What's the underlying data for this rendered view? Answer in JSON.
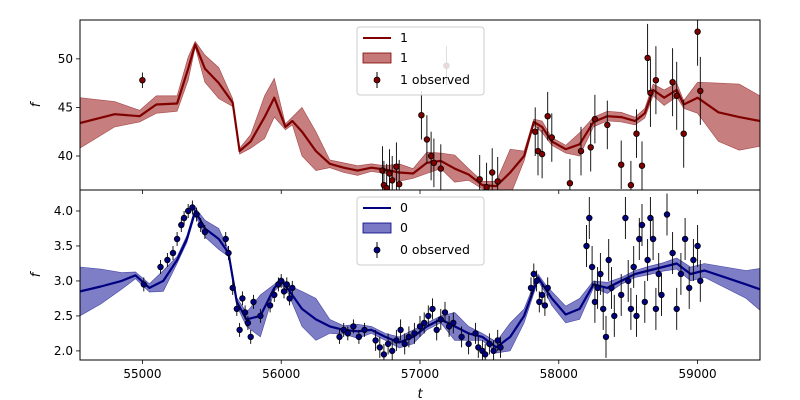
{
  "chart_data": [
    {
      "type": "line",
      "panel": "top",
      "xlabel": "",
      "ylabel": "f",
      "xlim": [
        54550,
        59450
      ],
      "ylim": [
        36.5,
        54
      ],
      "yticks": [
        40,
        45,
        50
      ],
      "xticks": [
        55000,
        56000,
        57000,
        58000,
        59000
      ],
      "colors": {
        "line": "#800000",
        "band": "#b24c4c",
        "points": "#800000"
      },
      "legend": {
        "placement": "top-center",
        "entries": [
          "1",
          "1",
          "1 observed"
        ]
      },
      "series": [
        {
          "name": "1",
          "kind": "model-line",
          "x": [
            54550,
            54800,
            54980,
            55100,
            55250,
            55330,
            55380,
            55450,
            55550,
            55650,
            55700,
            55780,
            55880,
            55950,
            56030,
            56080,
            56150,
            56250,
            56350,
            56450,
            56550,
            56650,
            56750,
            56850,
            56950,
            57050,
            57150,
            57250,
            57350,
            57450,
            57550,
            57650,
            57750,
            57820,
            57880,
            57950,
            58050,
            58150,
            58250,
            58350,
            58450,
            58550,
            58620,
            58680,
            58760,
            58850,
            58900,
            59000,
            59150,
            59300,
            59450
          ],
          "y": [
            43.4,
            44.3,
            44.1,
            45.3,
            45.4,
            49.0,
            51.5,
            49.0,
            47.5,
            45.5,
            40.5,
            41.5,
            44.0,
            46.0,
            43.0,
            43.6,
            42.5,
            40.5,
            39.2,
            38.8,
            38.5,
            38.8,
            38.6,
            38.3,
            38.2,
            39.3,
            39.5,
            38.7,
            38.1,
            37.0,
            36.9,
            38.3,
            40.0,
            43.5,
            43.0,
            41.5,
            40.7,
            41.2,
            43.5,
            44.1,
            44.0,
            43.6,
            44.4,
            46.8,
            46.0,
            46.8,
            45.3,
            46.0,
            44.5,
            44.0,
            43.6
          ]
        },
        {
          "name": "1",
          "kind": "uncertainty-band",
          "x": [
            54550,
            54800,
            54980,
            55100,
            55250,
            55330,
            55380,
            55450,
            55550,
            55650,
            55700,
            55780,
            55880,
            55950,
            56030,
            56080,
            56150,
            56250,
            56350,
            56450,
            56550,
            56650,
            56750,
            56850,
            56950,
            57050,
            57150,
            57250,
            57350,
            57450,
            57550,
            57650,
            57750,
            57820,
            57880,
            57950,
            58050,
            58150,
            58250,
            58350,
            58450,
            58550,
            58620,
            58680,
            58760,
            58850,
            58900,
            59000,
            59150,
            59300,
            59450
          ],
          "half_width": [
            2.6,
            1.3,
            0.6,
            0.9,
            0.8,
            1.2,
            0.3,
            1.4,
            1.6,
            0.4,
            0.3,
            0.7,
            2.2,
            2.0,
            0.3,
            0.4,
            2.5,
            2.0,
            0.4,
            0.5,
            0.5,
            0.4,
            0.4,
            0.9,
            0.5,
            1.1,
            0.8,
            1.4,
            0.6,
            0.4,
            0.5,
            2.4,
            0.5,
            0.3,
            0.6,
            0.4,
            0.4,
            1.2,
            0.5,
            0.5,
            0.5,
            0.4,
            0.5,
            0.6,
            0.8,
            0.7,
            0.4,
            1.6,
            3.0,
            3.4,
            2.6
          ]
        },
        {
          "name": "1 observed",
          "kind": "observed-points",
          "x": [
            55000,
            56730,
            56740,
            56760,
            56780,
            56800,
            56830,
            56850,
            57010,
            57050,
            57080,
            57100,
            57150,
            57190,
            57430,
            57480,
            57520,
            57560,
            57830,
            57850,
            57880,
            57920,
            57950,
            58080,
            58160,
            58230,
            58260,
            58350,
            58450,
            58520,
            58560,
            58600,
            58640,
            58660,
            58700,
            58820,
            58850,
            58900,
            59000,
            59020
          ],
          "y": [
            47.8,
            38.5,
            37.0,
            36.7,
            38.2,
            37.5,
            38.9,
            37.1,
            44.2,
            41.7,
            40.0,
            39.3,
            38.7,
            49.3,
            37.6,
            36.8,
            38.3,
            37.4,
            42.5,
            40.5,
            40.2,
            44.1,
            41.9,
            37.2,
            40.5,
            40.9,
            43.8,
            43.2,
            39.1,
            37.0,
            42.3,
            39.0,
            50.1,
            46.5,
            47.8,
            47.6,
            46.2,
            42.3,
            52.8,
            46.7
          ],
          "yerr": [
            0.8,
            2.5,
            2.5,
            2.5,
            2.5,
            2.5,
            2.5,
            2.5,
            2.5,
            2.5,
            2.5,
            2.5,
            2.5,
            2.0,
            2.5,
            2.5,
            2.5,
            2.5,
            2.5,
            2.5,
            2.5,
            2.5,
            2.5,
            2.5,
            2.5,
            2.5,
            2.5,
            2.5,
            2.5,
            2.5,
            2.5,
            2.5,
            3.5,
            3.5,
            3.5,
            3.5,
            3.5,
            3.5,
            3.5,
            3.5
          ]
        }
      ]
    },
    {
      "type": "line",
      "panel": "bottom",
      "xlabel": "t",
      "ylabel": "f",
      "xlim": [
        54550,
        59450
      ],
      "ylim": [
        1.87,
        4.3
      ],
      "yticks": [
        2.0,
        2.5,
        3.0,
        3.5,
        4.0
      ],
      "yticklabels": [
        "2.0",
        "2.5",
        "3.0",
        "3.5",
        "4.0"
      ],
      "xticks": [
        55000,
        56000,
        57000,
        58000,
        59000
      ],
      "colors": {
        "line": "#000080",
        "band": "#4c4cb2",
        "points": "#000080"
      },
      "legend": {
        "placement": "top-center",
        "entries": [
          "0",
          "0",
          "0 observed"
        ]
      },
      "series": [
        {
          "name": "0",
          "kind": "model-line",
          "x": [
            54550,
            54700,
            54850,
            54950,
            55050,
            55150,
            55250,
            55320,
            55380,
            55450,
            55550,
            55620,
            55680,
            55750,
            55850,
            55950,
            56000,
            56050,
            56150,
            56250,
            56350,
            56450,
            56550,
            56650,
            56750,
            56850,
            56950,
            57050,
            57150,
            57250,
            57350,
            57450,
            57550,
            57650,
            57750,
            57850,
            57900,
            57950,
            58050,
            58150,
            58250,
            58350,
            58450,
            58550,
            58650,
            58750,
            58850,
            58950,
            59050,
            59200,
            59350,
            59450
          ],
          "y": [
            2.85,
            2.92,
            3.0,
            3.08,
            2.9,
            3.0,
            3.3,
            3.6,
            4.0,
            3.75,
            3.6,
            3.4,
            2.7,
            2.45,
            2.5,
            2.9,
            3.0,
            2.88,
            2.6,
            2.45,
            2.35,
            2.3,
            2.28,
            2.3,
            2.2,
            2.12,
            2.2,
            2.35,
            2.45,
            2.35,
            2.25,
            2.2,
            2.05,
            2.2,
            2.5,
            3.05,
            2.9,
            2.75,
            2.52,
            2.6,
            2.95,
            2.9,
            3.0,
            3.1,
            3.15,
            3.2,
            3.25,
            3.1,
            3.15,
            3.05,
            2.95,
            2.88
          ]
        },
        {
          "name": "0",
          "kind": "uncertainty-band",
          "x": [
            54550,
            54700,
            54850,
            54950,
            55050,
            55150,
            55250,
            55320,
            55380,
            55450,
            55550,
            55620,
            55680,
            55750,
            55850,
            55950,
            56000,
            56050,
            56150,
            56250,
            56350,
            56450,
            56550,
            56650,
            56750,
            56850,
            56950,
            57050,
            57150,
            57250,
            57350,
            57450,
            57550,
            57650,
            57750,
            57850,
            57900,
            57950,
            58050,
            58150,
            58250,
            58350,
            58450,
            58550,
            58650,
            58750,
            58850,
            58950,
            59050,
            59200,
            59350,
            59450
          ],
          "half_width": [
            0.35,
            0.25,
            0.12,
            0.05,
            0.06,
            0.15,
            0.05,
            0.05,
            0.05,
            0.12,
            0.15,
            0.05,
            0.06,
            0.1,
            0.3,
            0.05,
            0.05,
            0.06,
            0.25,
            0.3,
            0.1,
            0.06,
            0.1,
            0.05,
            0.05,
            0.08,
            0.1,
            0.05,
            0.05,
            0.2,
            0.1,
            0.05,
            0.08,
            0.2,
            0.1,
            0.05,
            0.06,
            0.1,
            0.12,
            0.15,
            0.05,
            0.08,
            0.05,
            0.05,
            0.06,
            0.06,
            0.08,
            0.1,
            0.1,
            0.15,
            0.2,
            0.3
          ]
        },
        {
          "name": "0 observed",
          "kind": "observed-points",
          "x": [
            55010,
            55130,
            55180,
            55220,
            55250,
            55280,
            55300,
            55330,
            55360,
            55390,
            55420,
            55450,
            55600,
            55620,
            55650,
            55680,
            55700,
            55720,
            55740,
            55760,
            55780,
            55800,
            55850,
            55920,
            55950,
            55980,
            56000,
            56020,
            56040,
            56060,
            56080,
            56420,
            56450,
            56480,
            56520,
            56560,
            56600,
            56680,
            56710,
            56740,
            56770,
            56800,
            56830,
            56860,
            56890,
            56920,
            56960,
            57000,
            57030,
            57060,
            57090,
            57120,
            57150,
            57180,
            57210,
            57240,
            57300,
            57350,
            57400,
            57420,
            57450,
            57470,
            57500,
            57530,
            57560,
            57580,
            57800,
            57820,
            57840,
            57860,
            57880,
            57900,
            57920,
            58200,
            58220,
            58240,
            58260,
            58280,
            58300,
            58320,
            58340,
            58360,
            58380,
            58400,
            58450,
            58480,
            58500,
            58520,
            58540,
            58560,
            58580,
            58600,
            58620,
            58640,
            58660,
            58680,
            58700,
            58720,
            58740,
            58780,
            58820,
            58850,
            58880,
            58910,
            58940,
            58970,
            59000,
            59020
          ],
          "y": [
            2.95,
            3.2,
            3.3,
            3.4,
            3.6,
            3.8,
            3.9,
            4.0,
            4.05,
            3.95,
            3.8,
            3.7,
            3.6,
            3.4,
            2.9,
            2.6,
            2.3,
            2.75,
            2.55,
            2.4,
            2.2,
            2.7,
            2.5,
            2.65,
            2.8,
            2.95,
            3.0,
            2.85,
            2.95,
            2.75,
            2.9,
            2.2,
            2.3,
            2.25,
            2.35,
            2.2,
            2.3,
            2.15,
            2.05,
            1.95,
            2.1,
            2.0,
            2.15,
            2.3,
            2.1,
            2.2,
            2.25,
            2.35,
            2.4,
            2.5,
            2.6,
            2.3,
            2.45,
            2.55,
            2.35,
            2.4,
            2.2,
            2.1,
            2.25,
            2.05,
            2.0,
            1.95,
            2.1,
            2.0,
            2.15,
            2.05,
            2.9,
            3.1,
            3.0,
            2.7,
            2.8,
            2.65,
            2.9,
            3.5,
            3.9,
            3.2,
            2.7,
            2.9,
            3.1,
            2.6,
            2.2,
            3.3,
            2.9,
            2.5,
            2.8,
            3.9,
            3.0,
            2.6,
            3.2,
            2.5,
            3.6,
            3.8,
            2.7,
            3.3,
            3.9,
            3.6,
            2.6,
            3.1,
            2.8,
            3.95,
            3.4,
            2.6,
            3.1,
            3.6,
            2.9,
            3.3,
            3.5,
            3.0
          ],
          "yerr": [
            0.1,
            0.1,
            0.1,
            0.1,
            0.1,
            0.1,
            0.1,
            0.1,
            0.1,
            0.1,
            0.1,
            0.1,
            0.1,
            0.1,
            0.1,
            0.1,
            0.1,
            0.1,
            0.1,
            0.1,
            0.1,
            0.1,
            0.1,
            0.1,
            0.1,
            0.1,
            0.1,
            0.1,
            0.1,
            0.1,
            0.1,
            0.1,
            0.1,
            0.1,
            0.1,
            0.1,
            0.1,
            0.15,
            0.15,
            0.15,
            0.15,
            0.15,
            0.15,
            0.15,
            0.15,
            0.15,
            0.15,
            0.15,
            0.15,
            0.15,
            0.15,
            0.15,
            0.15,
            0.15,
            0.15,
            0.15,
            0.15,
            0.15,
            0.15,
            0.15,
            0.15,
            0.15,
            0.15,
            0.15,
            0.15,
            0.15,
            0.15,
            0.15,
            0.15,
            0.15,
            0.15,
            0.15,
            0.15,
            0.3,
            0.3,
            0.3,
            0.3,
            0.3,
            0.3,
            0.3,
            0.3,
            0.3,
            0.3,
            0.3,
            0.3,
            0.3,
            0.3,
            0.3,
            0.3,
            0.3,
            0.3,
            0.3,
            0.3,
            0.3,
            0.3,
            0.3,
            0.3,
            0.3,
            0.3,
            0.3,
            0.3,
            0.3,
            0.3,
            0.3,
            0.3,
            0.3,
            0.3,
            0.3
          ]
        }
      ]
    }
  ]
}
